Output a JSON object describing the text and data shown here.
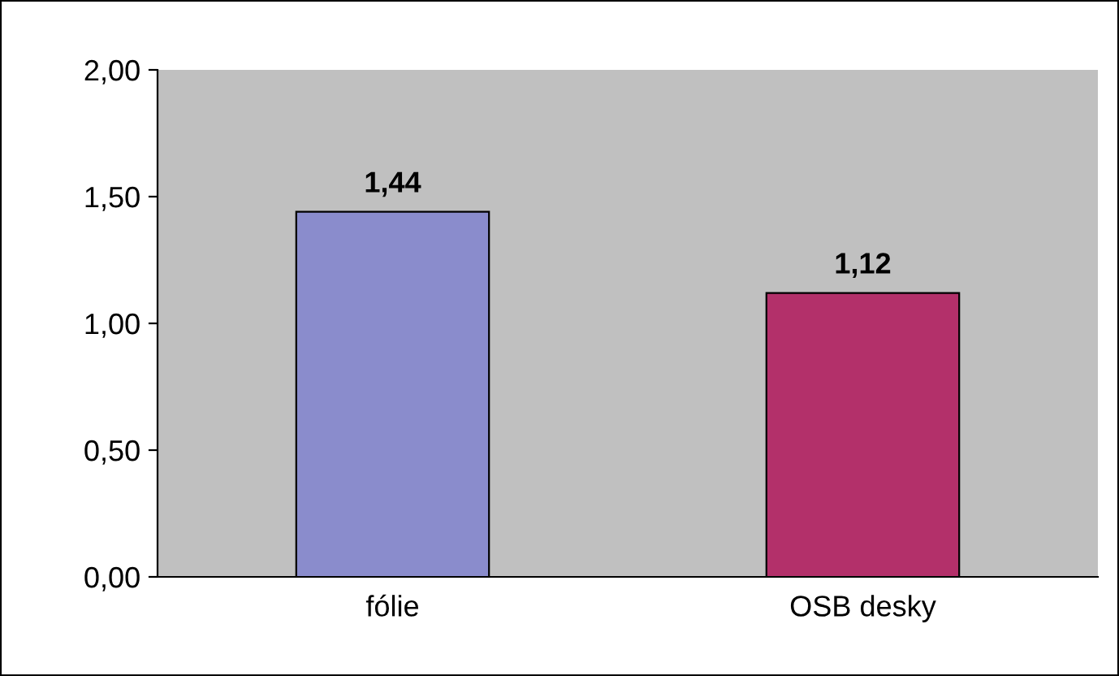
{
  "chart_data": {
    "type": "bar",
    "categories": [
      "fólie",
      "OSB desky"
    ],
    "values": [
      1.44,
      1.12
    ],
    "colors": [
      "#8a8ccc",
      "#b3306a"
    ],
    "value_labels": [
      "1,44",
      "1,12"
    ],
    "ylim": [
      0,
      2
    ],
    "yticks": [
      {
        "value": 0,
        "label": "0,00"
      },
      {
        "value": 0.5,
        "label": "0,50"
      },
      {
        "value": 1,
        "label": "1,00"
      },
      {
        "value": 1.5,
        "label": "1,50"
      },
      {
        "value": 2,
        "label": "2,00"
      }
    ],
    "grid": false
  }
}
